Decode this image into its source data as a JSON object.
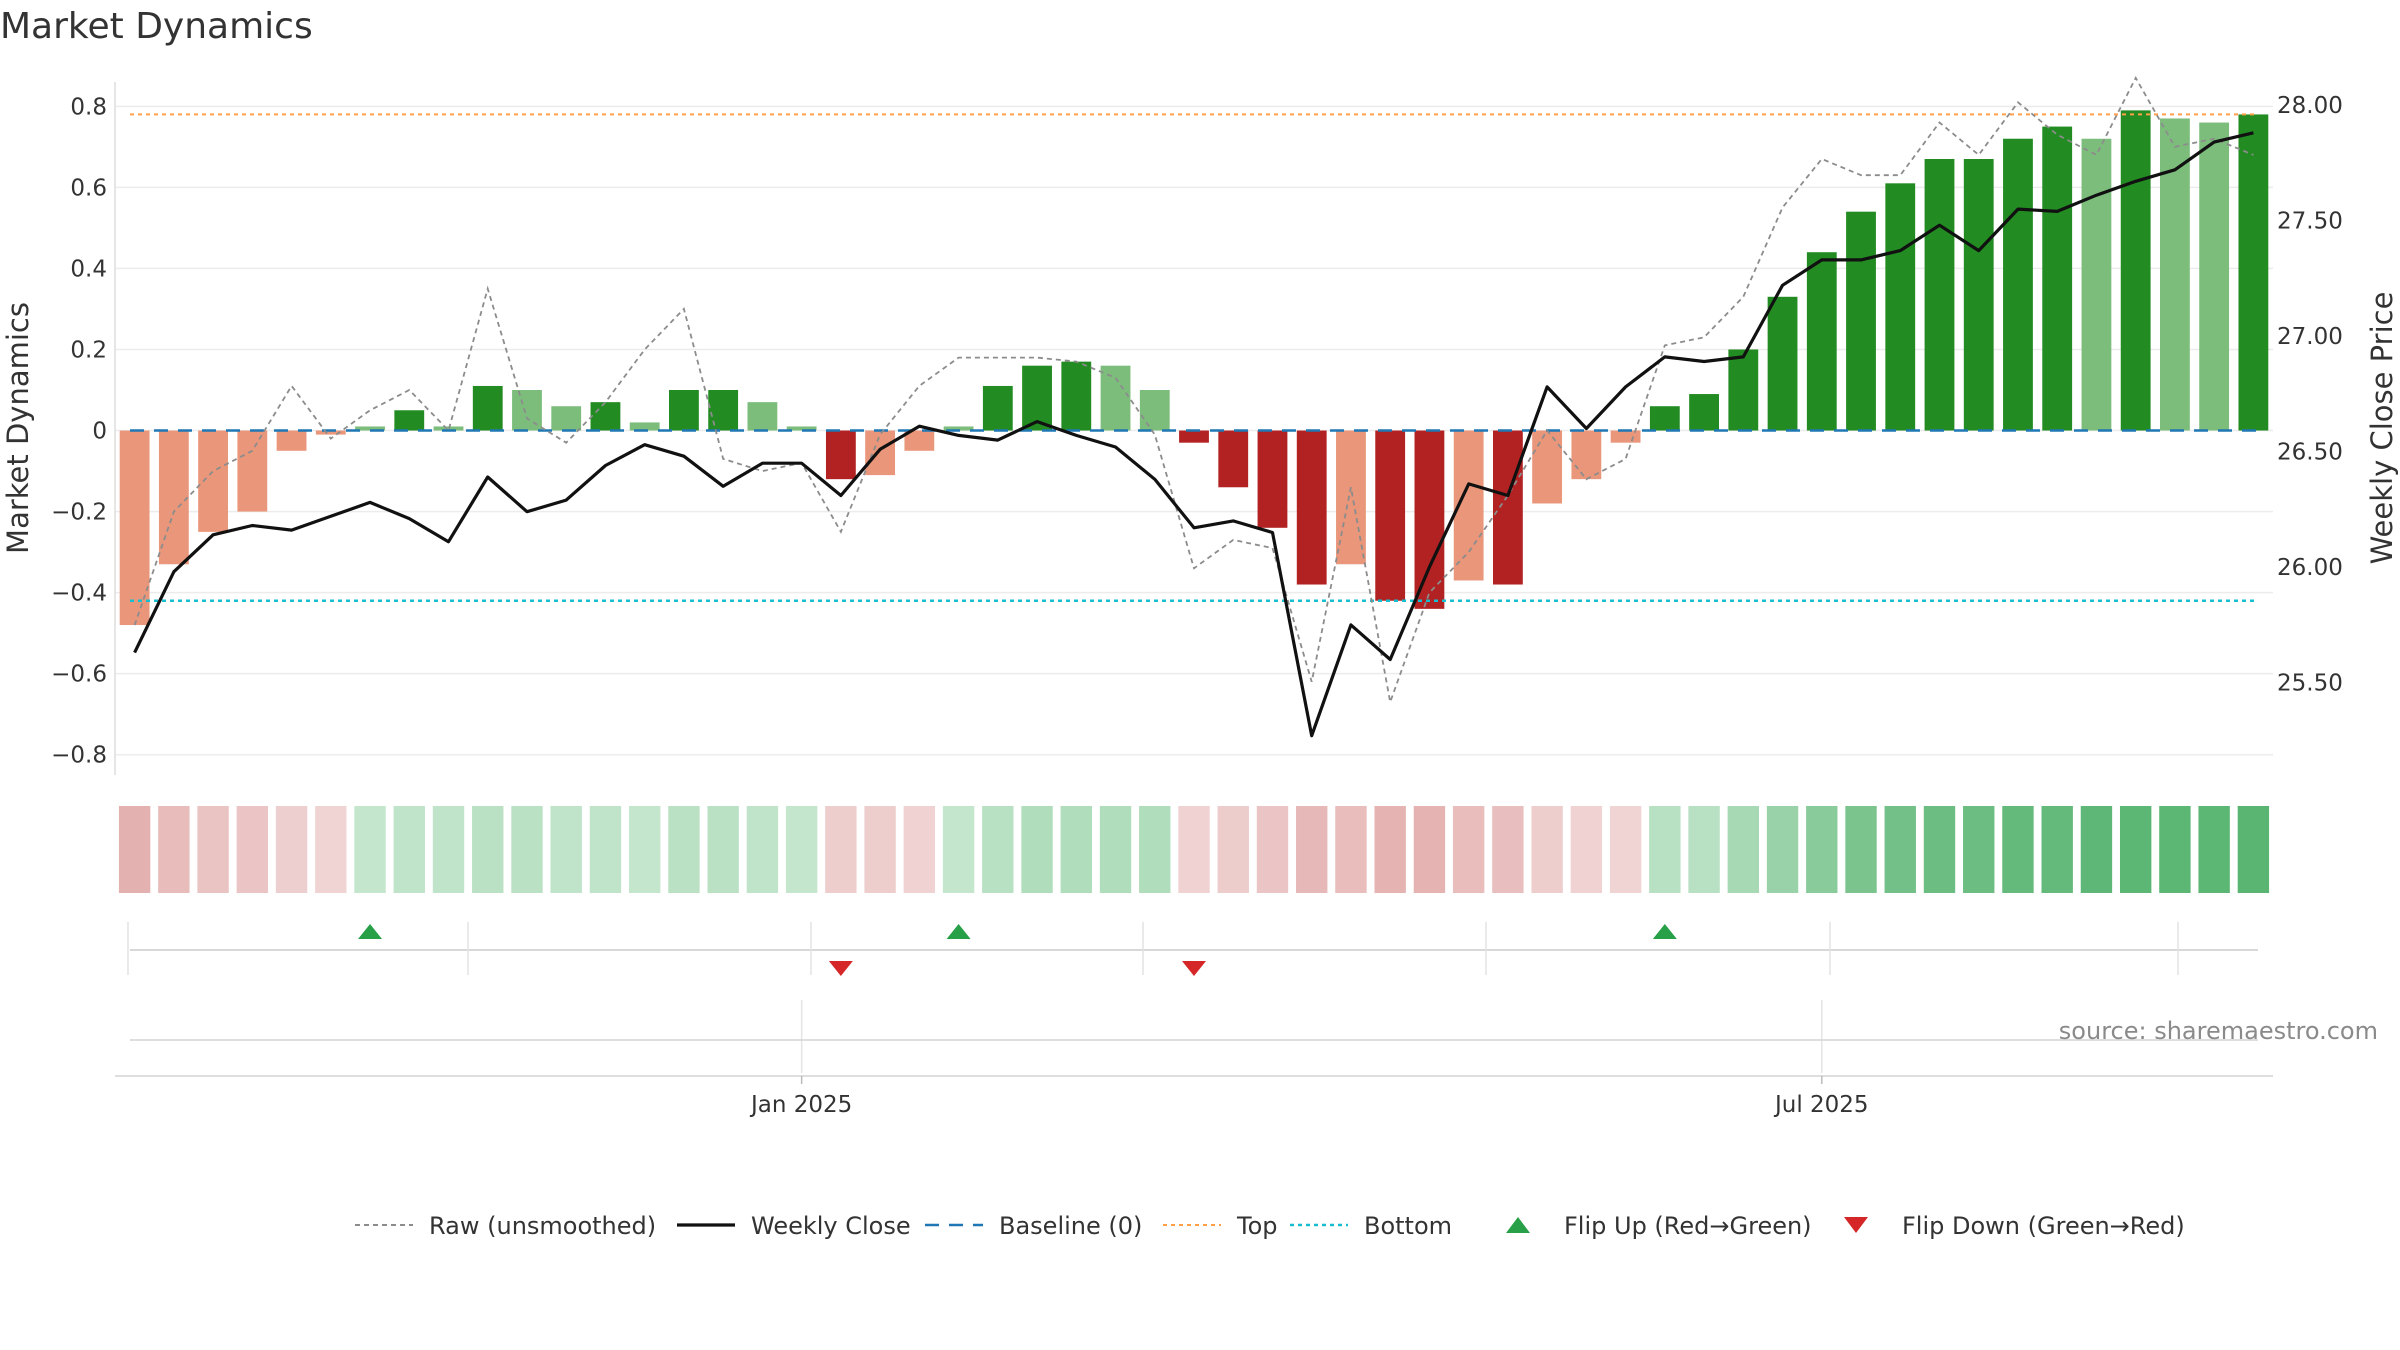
{
  "chart_data": {
    "type": "bar",
    "title": "Market Dynamics",
    "ylabel_left": "Market Dynamics",
    "ylabel_right": "Weekly Close Price",
    "ylim_left": [
      -0.85,
      0.86
    ],
    "ylim_right": [
      25.1,
      28.1
    ],
    "yticks_left": [
      {
        "v": 0.8,
        "label": "0.8"
      },
      {
        "v": 0.6,
        "label": "0.6"
      },
      {
        "v": 0.4,
        "label": "0.4"
      },
      {
        "v": 0.2,
        "label": "0.2"
      },
      {
        "v": 0,
        "label": "0"
      },
      {
        "v": -0.2,
        "label": "−0.2"
      },
      {
        "v": -0.4,
        "label": "−0.4"
      },
      {
        "v": -0.6,
        "label": "−0.6"
      },
      {
        "v": -0.8,
        "label": "−0.8"
      }
    ],
    "yticks_right": [
      {
        "v": 28.0,
        "label": "28.00"
      },
      {
        "v": 27.5,
        "label": "27.50"
      },
      {
        "v": 27.0,
        "label": "27.00"
      },
      {
        "v": 26.5,
        "label": "26.50"
      },
      {
        "v": 26.0,
        "label": "26.00"
      },
      {
        "v": 25.5,
        "label": "25.50"
      }
    ],
    "xticks": [
      {
        "index": 17.5,
        "label": "Jan 2025"
      },
      {
        "index": 43.5,
        "label": "Jul 2025"
      }
    ],
    "weeks": 55,
    "values": [
      -0.48,
      -0.33,
      -0.25,
      -0.2,
      -0.05,
      -0.01,
      0.01,
      0.05,
      0.01,
      0.11,
      0.1,
      0.06,
      0.07,
      0.02,
      0.1,
      0.1,
      0.07,
      0.01,
      -0.12,
      -0.11,
      -0.05,
      0.01,
      0.11,
      0.16,
      0.17,
      0.16,
      0.1,
      -0.03,
      -0.14,
      -0.24,
      -0.38,
      -0.33,
      -0.42,
      -0.44,
      -0.37,
      -0.38,
      -0.18,
      -0.12,
      -0.03,
      0.06,
      0.09,
      0.2,
      0.33,
      0.44,
      0.54,
      0.61,
      0.67,
      0.67,
      0.72,
      0.75,
      0.72,
      0.79,
      0.77,
      0.76,
      0.78
    ],
    "raw": [
      -0.48,
      -0.2,
      -0.1,
      -0.05,
      0.11,
      -0.02,
      0.05,
      0.1,
      0.0,
      0.35,
      0.03,
      -0.03,
      0.07,
      0.2,
      0.3,
      -0.07,
      -0.1,
      -0.08,
      -0.25,
      -0.01,
      0.11,
      0.18,
      0.18,
      0.18,
      0.17,
      0.13,
      -0.01,
      -0.34,
      -0.27,
      -0.29,
      -0.62,
      -0.14,
      -0.67,
      -0.4,
      -0.3,
      -0.16,
      0.0,
      -0.12,
      -0.07,
      0.21,
      0.23,
      0.33,
      0.55,
      0.67,
      0.63,
      0.63,
      0.76,
      0.68,
      0.81,
      0.73,
      0.68,
      0.87,
      0.7,
      0.72,
      0.68
    ],
    "weekly_close": [
      25.63,
      25.98,
      26.14,
      26.18,
      26.16,
      26.22,
      26.28,
      26.21,
      26.11,
      26.39,
      26.24,
      26.29,
      26.44,
      26.53,
      26.48,
      26.35,
      26.45,
      26.45,
      26.31,
      26.51,
      26.61,
      26.57,
      26.55,
      26.63,
      26.57,
      26.52,
      26.38,
      26.17,
      26.2,
      26.15,
      25.27,
      25.75,
      25.6,
      26.0,
      26.36,
      26.31,
      26.78,
      26.6,
      26.78,
      26.91,
      26.89,
      26.91,
      27.22,
      27.33,
      27.33,
      27.37,
      27.48,
      27.37,
      27.55,
      27.54,
      27.61,
      27.67,
      27.72,
      27.84,
      27.88
    ],
    "baseline": 0,
    "top": 0.78,
    "bottom": -0.42,
    "momentum_shade": [
      -0.55,
      -0.42,
      -0.32,
      -0.3,
      -0.18,
      -0.12,
      0.12,
      0.15,
      0.15,
      0.18,
      0.18,
      0.15,
      0.15,
      0.12,
      0.18,
      0.18,
      0.15,
      0.12,
      -0.2,
      -0.2,
      -0.15,
      0.12,
      0.2,
      0.25,
      0.25,
      0.25,
      0.25,
      -0.15,
      -0.22,
      -0.3,
      -0.45,
      -0.4,
      -0.52,
      -0.52,
      -0.4,
      -0.38,
      -0.2,
      -0.15,
      -0.12,
      0.2,
      0.2,
      0.3,
      0.4,
      0.5,
      0.6,
      0.65,
      0.7,
      0.7,
      0.75,
      0.75,
      0.78,
      0.8,
      0.8,
      0.8,
      0.82
    ],
    "flip_up_indices": [
      6,
      21,
      39
    ],
    "flip_down_indices": [
      18,
      27
    ],
    "colors": {
      "strong_pos": "#228b22",
      "weak_pos": "#7cbd7c",
      "strong_neg": "#b22222",
      "weak_neg": "#e9967a",
      "raw_line": "#8c8c8c",
      "close_line": "#111111",
      "baseline": "#1f77b4",
      "top": "#ff9f4a",
      "bottom": "#17becf",
      "flip_up": "#27a048",
      "flip_down": "#d62728"
    },
    "legend": [
      {
        "key": "raw",
        "label": "Raw (unsmoothed)"
      },
      {
        "key": "close",
        "label": "Weekly Close"
      },
      {
        "key": "baseline",
        "label": "Baseline (0)"
      },
      {
        "key": "top",
        "label": "Top"
      },
      {
        "key": "bottom",
        "label": "Bottom"
      },
      {
        "key": "flip_up",
        "label": "Flip Up (Red→Green)"
      },
      {
        "key": "flip_down",
        "label": "Flip Down (Green→Red)"
      }
    ],
    "legend_position": "bottom-center",
    "grid": true
  },
  "source": "source: sharemaestro.com"
}
